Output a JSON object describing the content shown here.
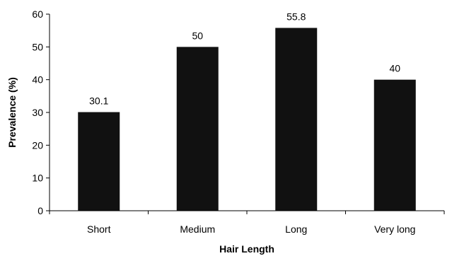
{
  "chart_data": {
    "type": "bar",
    "categories": [
      "Short",
      "Medium",
      "Long",
      "Very long"
    ],
    "values": [
      30.1,
      50,
      55.8,
      40
    ],
    "data_labels": [
      "30.1",
      "50",
      "55.8",
      "40"
    ],
    "xlabel": "Hair Length",
    "ylabel": "Prevalence (%)",
    "ylim": [
      0,
      60
    ],
    "yticks": [
      0,
      10,
      20,
      30,
      40,
      50,
      60
    ],
    "grid": false,
    "bar_color": "#111111"
  }
}
